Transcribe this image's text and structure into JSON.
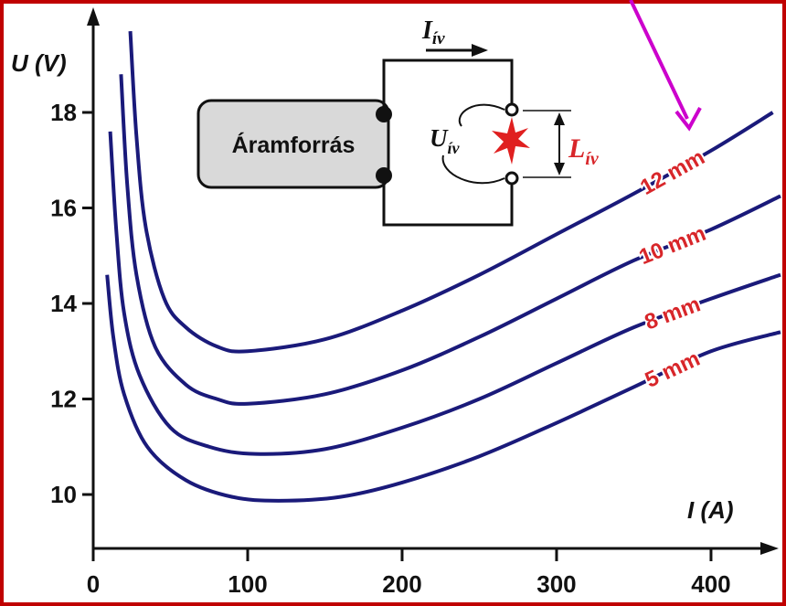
{
  "chart_data": {
    "type": "line",
    "x_label": "I (A)",
    "y_label": "U (V)",
    "xlim": [
      0,
      445
    ],
    "ylim": [
      8.9,
      20
    ],
    "xticks": [
      0,
      100,
      200,
      300,
      400
    ],
    "yticks": [
      10,
      12,
      14,
      16,
      18
    ],
    "series": [
      {
        "name": "12 mm",
        "color": "#1a1a7a",
        "x": [
          24,
          28,
          34,
          46,
          60,
          80,
          100,
          150,
          200,
          250,
          300,
          350,
          400,
          440
        ],
        "values": [
          19.7,
          17.5,
          15.6,
          14.1,
          13.5,
          13.1,
          13.0,
          13.25,
          13.85,
          14.6,
          15.45,
          16.3,
          17.2,
          18.0
        ]
      },
      {
        "name": "10 mm",
        "color": "#1a1a7a",
        "x": [
          18,
          22,
          28,
          40,
          60,
          80,
          100,
          150,
          200,
          250,
          300,
          350,
          400,
          445
        ],
        "values": [
          18.8,
          16.5,
          14.6,
          13.1,
          12.3,
          12.0,
          11.9,
          12.1,
          12.6,
          13.3,
          14.1,
          14.9,
          15.55,
          16.25
        ]
      },
      {
        "name": "8 mm",
        "color": "#1a1a7a",
        "x": [
          11,
          15,
          20,
          30,
          50,
          75,
          105,
          150,
          200,
          250,
          300,
          350,
          400,
          445
        ],
        "values": [
          17.6,
          15.5,
          13.8,
          12.5,
          11.4,
          11.0,
          10.85,
          10.95,
          11.4,
          12.0,
          12.75,
          13.5,
          14.1,
          14.6
        ]
      },
      {
        "name": "5 mm",
        "color": "#1a1a7a",
        "x": [
          9,
          13,
          20,
          35,
          60,
          90,
          120,
          160,
          200,
          250,
          300,
          350,
          400,
          445
        ],
        "values": [
          14.6,
          13.3,
          12.1,
          11.0,
          10.3,
          9.95,
          9.87,
          9.95,
          10.25,
          10.8,
          11.5,
          12.25,
          13.0,
          13.4
        ]
      }
    ],
    "diagram": {
      "source": "Áramforrás",
      "current": {
        "symbol": "I",
        "subscript": "ív"
      },
      "voltage": {
        "symbol": "U",
        "subscript": "ív"
      },
      "length": {
        "symbol": "L",
        "subscript": "ív"
      }
    }
  }
}
